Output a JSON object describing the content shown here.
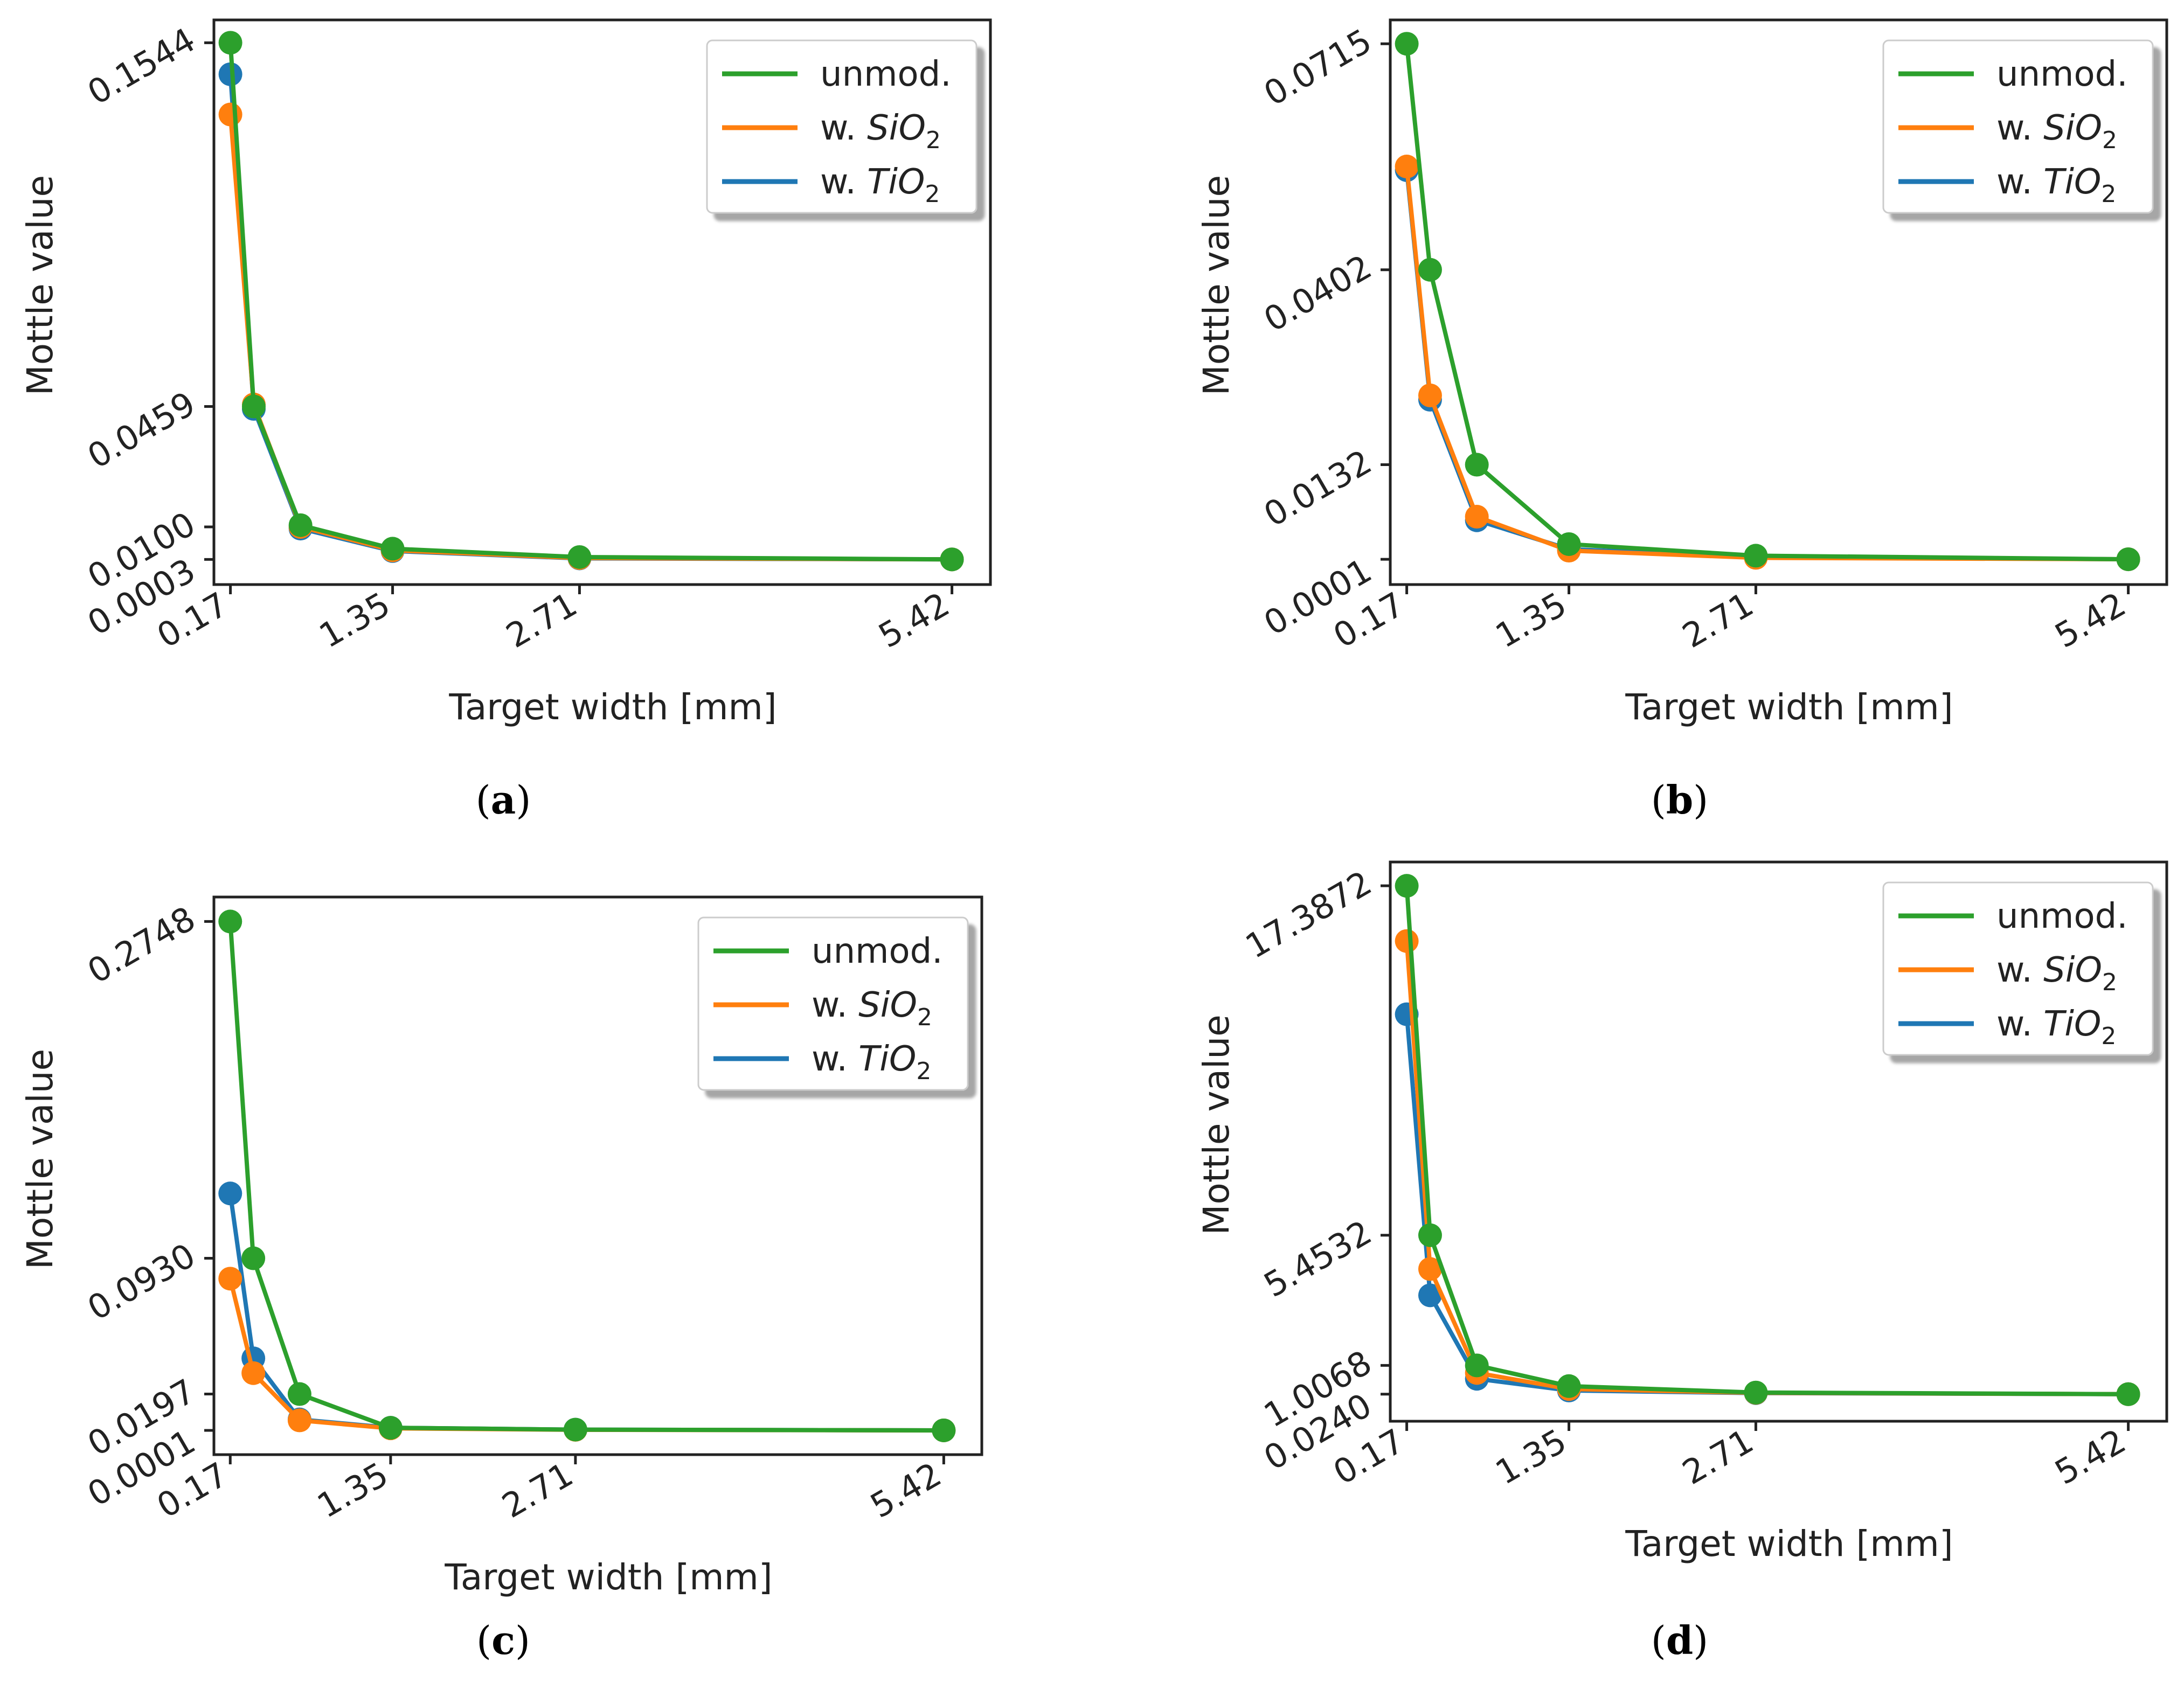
{
  "colors": {
    "unmod": "#2ca02c",
    "sio2": "#ff7f0e",
    "tio2": "#1f77b4"
  },
  "legend_labels": {
    "unmod": "unmod.",
    "sio2_prefix": "w. ",
    "sio2_main": "SiO",
    "sio2_sub": "2",
    "tio2_prefix": "w. ",
    "tio2_main": "TiO",
    "tio2_sub": "2"
  },
  "chart_data": [
    {
      "type": "line",
      "caption": "a",
      "xlabel": "Target width [mm]",
      "ylabel": "Mottle value",
      "xticks": [
        "0.17",
        "1.35",
        "2.71",
        "5.42"
      ],
      "xtick_values": [
        0.17,
        1.35,
        2.71,
        5.42
      ],
      "yticks": [
        "0.0003",
        "0.0100",
        "0.0459",
        "0.1544"
      ],
      "ytick_values": [
        0.0003,
        0.01,
        0.0459,
        0.1544
      ],
      "xlim": [
        0.05,
        5.7
      ],
      "ylim": [
        -0.0072,
        0.1612
      ],
      "legend_position": "top-right",
      "grid": false,
      "x": [
        0.17,
        0.34,
        0.68,
        1.35,
        2.71,
        5.42
      ],
      "series": [
        {
          "key": "tio2",
          "values": [
            0.145,
            0.0452,
            0.0095,
            0.0028,
            0.0006,
            0.0003
          ]
        },
        {
          "key": "sio2",
          "values": [
            0.133,
            0.0465,
            0.01,
            0.003,
            0.0007,
            0.0003
          ]
        },
        {
          "key": "unmod",
          "values": [
            0.1544,
            0.0459,
            0.0105,
            0.0035,
            0.001,
            0.0003
          ]
        }
      ]
    },
    {
      "type": "line",
      "caption": "b",
      "xlabel": "Target width [mm]",
      "ylabel": "Mottle value",
      "xticks": [
        "0.17",
        "1.35",
        "2.71",
        "5.42"
      ],
      "xtick_values": [
        0.17,
        1.35,
        2.71,
        5.42
      ],
      "yticks": [
        "0.0001",
        "0.0132",
        "0.0402",
        "0.0715"
      ],
      "ytick_values": [
        0.0001,
        0.0132,
        0.0402,
        0.0715
      ],
      "xlim": [
        0.05,
        5.7
      ],
      "ylim": [
        -0.0034,
        0.0748
      ],
      "legend_position": "top-right",
      "grid": false,
      "x": [
        0.17,
        0.34,
        0.68,
        1.35,
        2.71,
        5.42
      ],
      "series": [
        {
          "key": "tio2",
          "values": [
            0.054,
            0.0222,
            0.0055,
            0.0015,
            0.0004,
            0.0001
          ]
        },
        {
          "key": "sio2",
          "values": [
            0.0545,
            0.0228,
            0.006,
            0.0013,
            0.0003,
            0.0001
          ]
        },
        {
          "key": "unmod",
          "values": [
            0.0715,
            0.0402,
            0.0132,
            0.0022,
            0.0006,
            0.0001
          ]
        }
      ]
    },
    {
      "type": "line",
      "caption": "c",
      "xlabel": "Target width [mm]",
      "ylabel": "Mottle value",
      "xticks": [
        "0.17",
        "1.35",
        "2.71",
        "5.42"
      ],
      "xtick_values": [
        0.17,
        1.35,
        2.71,
        5.42
      ],
      "yticks": [
        "0.0001",
        "0.0197",
        "0.0930",
        "0.2748"
      ],
      "ytick_values": [
        0.0001,
        0.0197,
        0.093,
        0.2748
      ],
      "xlim": [
        0.05,
        5.7
      ],
      "ylim": [
        -0.013,
        0.288
      ],
      "legend_position": "top-right",
      "grid": false,
      "x": [
        0.17,
        0.34,
        0.68,
        1.35,
        2.71,
        5.42
      ],
      "series": [
        {
          "key": "tio2",
          "values": [
            0.128,
            0.039,
            0.006,
            0.0015,
            0.0005,
            0.0001
          ]
        },
        {
          "key": "sio2",
          "values": [
            0.082,
            0.031,
            0.0055,
            0.0012,
            0.0004,
            0.0001
          ]
        },
        {
          "key": "unmod",
          "values": [
            0.2748,
            0.093,
            0.0197,
            0.0015,
            0.0005,
            0.0001
          ]
        }
      ]
    },
    {
      "type": "line",
      "caption": "d",
      "xlabel": "Target width [mm]",
      "ylabel": "Mottle value",
      "xticks": [
        "0.17",
        "1.35",
        "2.71",
        "5.42"
      ],
      "xtick_values": [
        0.17,
        1.35,
        2.71,
        5.42
      ],
      "yticks": [
        "0.0240",
        "1.0068",
        "5.4532",
        "17.3872"
      ],
      "ytick_values": [
        0.024,
        1.0068,
        5.4532,
        17.3872
      ],
      "xlim": [
        0.05,
        5.7
      ],
      "ylim": [
        -0.9,
        18.2
      ],
      "legend_position": "top-right",
      "grid": false,
      "x": [
        0.17,
        0.34,
        0.68,
        1.35,
        2.71,
        5.42
      ],
      "series": [
        {
          "key": "tio2",
          "values": [
            13.0,
            3.4,
            0.55,
            0.15,
            0.06,
            0.024
          ]
        },
        {
          "key": "sio2",
          "values": [
            15.5,
            4.3,
            0.75,
            0.2,
            0.07,
            0.024
          ]
        },
        {
          "key": "unmod",
          "values": [
            17.3872,
            5.4532,
            1.0068,
            0.3,
            0.08,
            0.024
          ]
        }
      ]
    }
  ]
}
